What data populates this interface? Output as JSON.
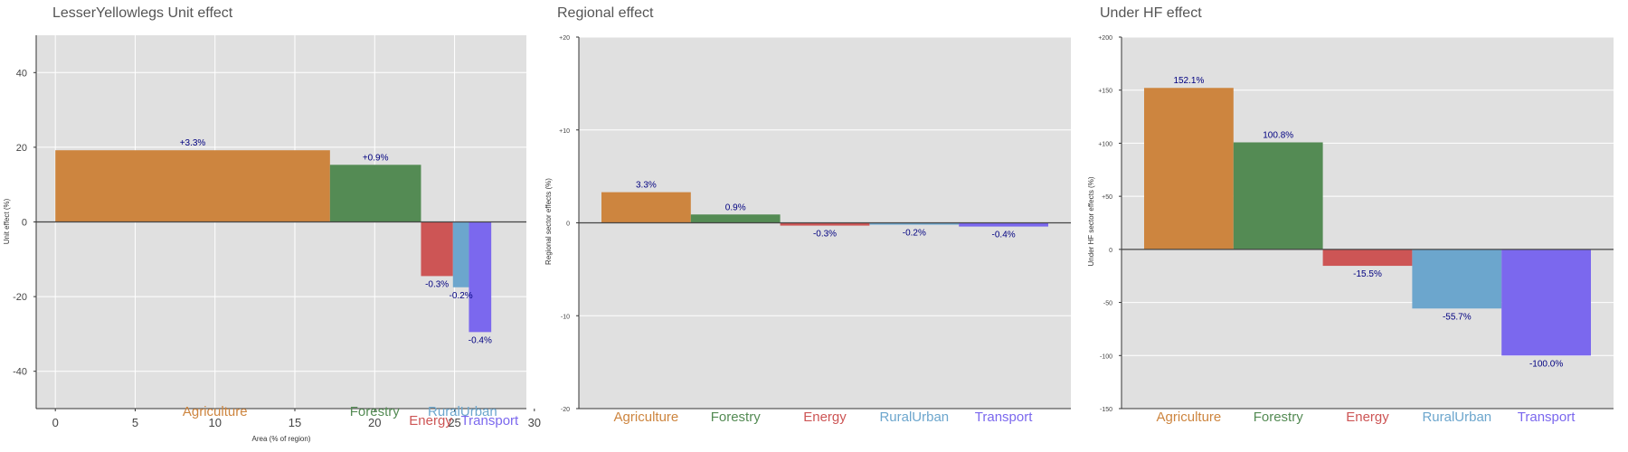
{
  "colors": {
    "Agriculture": "#CD853F",
    "Forestry": "#548B54",
    "Energy": "#CD5555",
    "RuralUrban": "#6CA6CD",
    "Transport": "#7B68EE"
  },
  "chart_data": [
    {
      "type": "bar",
      "title": "LesserYellowlegs Unit effect",
      "xlabel": "Area (% of region)",
      "ylabel": "Unit effect (%)",
      "xlim": [
        -1.2,
        29.5
      ],
      "xticks": [
        0,
        5,
        10,
        15,
        20,
        25,
        30
      ],
      "ylim": [
        -50,
        50
      ],
      "yticks": [
        -40,
        -20,
        0,
        20,
        40
      ],
      "grid": true,
      "categories": [
        "Agriculture",
        "Forestry",
        "Energy",
        "RuralUrban",
        "Transport"
      ],
      "bars": [
        {
          "category": "Agriculture",
          "x0": 0,
          "x1": 17.2,
          "value": 19.2,
          "label": "+3.3%"
        },
        {
          "category": "Forestry",
          "x0": 17.2,
          "x1": 22.9,
          "value": 15.3,
          "label": "+0.9%"
        },
        {
          "category": "Energy",
          "x0": 22.9,
          "x1": 24.9,
          "value": -14.5,
          "label": "-0.3%"
        },
        {
          "category": "RuralUrban",
          "x0": 24.9,
          "x1": 25.9,
          "value": -17.5,
          "label": "-0.2%"
        },
        {
          "category": "Transport",
          "x0": 25.9,
          "x1": 27.3,
          "value": -29.5,
          "label": "-0.4%"
        }
      ],
      "category_label_positions": [
        10,
        20,
        23.5,
        25.5,
        27.2
      ]
    },
    {
      "type": "bar",
      "title": "Regional effect",
      "ylabel": "Regional sector effects (%)",
      "ylim": [
        -20,
        20
      ],
      "yticks": [
        -20,
        -10,
        0,
        10,
        20
      ],
      "ytick_labels": [
        "-20",
        "-10",
        "0",
        "+10",
        "+20"
      ],
      "grid": true,
      "categories": [
        "Agriculture",
        "Forestry",
        "Energy",
        "RuralUrban",
        "Transport"
      ],
      "values": [
        3.3,
        0.9,
        -0.3,
        -0.2,
        -0.4
      ],
      "value_labels": [
        "3.3%",
        "0.9%",
        "-0.3%",
        "-0.2%",
        "-0.4%"
      ]
    },
    {
      "type": "bar",
      "title": "Under HF effect",
      "ylabel": "Under HF sector effects (%)",
      "ylim": [
        -150,
        200
      ],
      "yticks": [
        -150,
        -100,
        -50,
        0,
        50,
        100,
        150,
        200
      ],
      "ytick_labels": [
        "-150",
        "-100",
        "-50",
        "0",
        "+50",
        "+100",
        "+150",
        "+200"
      ],
      "grid": true,
      "categories": [
        "Agriculture",
        "Forestry",
        "Energy",
        "RuralUrban",
        "Transport"
      ],
      "values": [
        152.1,
        100.8,
        -15.5,
        -55.7,
        -100.0
      ],
      "value_labels": [
        "152.1%",
        "100.8%",
        "-15.5%",
        "-55.7%",
        "-100.0%"
      ]
    }
  ]
}
